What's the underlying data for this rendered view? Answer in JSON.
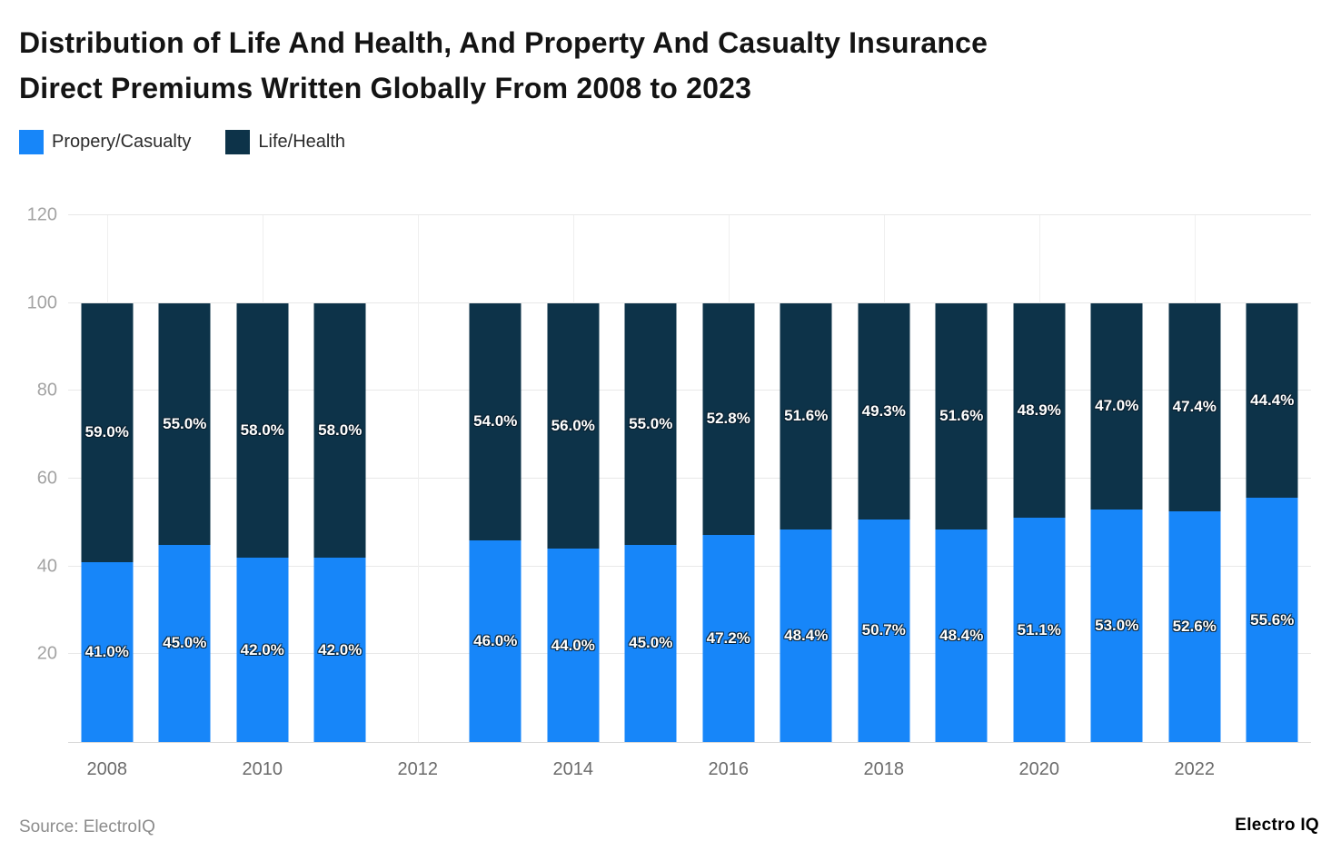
{
  "title": {
    "line1": "Distribution of Life And Health, And Property And Casualty Insurance",
    "line2": "Direct Premiums Written Globally From 2008 to 2023"
  },
  "legend": {
    "items": [
      {
        "label": "Propery/Casualty",
        "color": "#1786f9"
      },
      {
        "label": "Life/Health",
        "color": "#0d3349"
      }
    ]
  },
  "source": "Source: ElectroIQ",
  "brand": "Electro IQ",
  "chart_data": {
    "type": "bar",
    "stacked": true,
    "title": "Distribution of Life And Health, And Property And Casualty Insurance Direct Premiums Written Globally From 2008 to 2023",
    "categories": [
      "2008",
      "2009",
      "2010",
      "2011",
      "2012",
      "2013",
      "2014",
      "2015",
      "2016",
      "2017",
      "2018",
      "2019",
      "2020",
      "2021",
      "2022",
      "2023"
    ],
    "series": [
      {
        "name": "Propery/Casualty",
        "color": "#1786f9",
        "values": [
          41.0,
          45.0,
          42.0,
          42.0,
          null,
          46.0,
          44.0,
          45.0,
          47.2,
          48.4,
          50.7,
          48.4,
          51.1,
          53.0,
          52.6,
          55.6
        ]
      },
      {
        "name": "Life/Health",
        "color": "#0d3349",
        "values": [
          59.0,
          55.0,
          58.0,
          58.0,
          null,
          54.0,
          56.0,
          55.0,
          52.8,
          51.6,
          49.3,
          51.6,
          48.9,
          47.0,
          47.4,
          44.4
        ]
      }
    ],
    "ylim": [
      0,
      120
    ],
    "yticks": [
      20,
      40,
      60,
      80,
      100,
      120
    ],
    "xticks": [
      "2008",
      "2010",
      "2012",
      "2014",
      "2016",
      "2018",
      "2020",
      "2022"
    ],
    "value_suffix": "%",
    "grid": true,
    "legend_position": "top-left"
  }
}
